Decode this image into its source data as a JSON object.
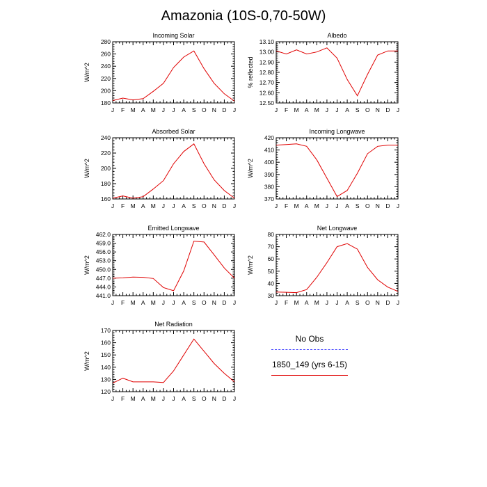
{
  "title": "Amazonia (10S-0,70-50W)",
  "legend": {
    "obs_label": "No Obs",
    "model_label": "1850_149 (yrs 6-15)",
    "obs_color": "#4444ff",
    "model_color": "#e00000"
  },
  "months": [
    "J",
    "F",
    "M",
    "A",
    "M",
    "J",
    "J",
    "A",
    "S",
    "O",
    "N",
    "D",
    "J"
  ],
  "chart_data": [
    {
      "type": "line",
      "title": "Incoming Solar",
      "ylabel": "W/m^2",
      "ylim": [
        180,
        280
      ],
      "yticks": [
        "180",
        "200",
        "220",
        "240",
        "260",
        "280"
      ],
      "values": [
        184,
        188,
        185,
        187,
        199,
        212,
        238,
        255,
        265,
        236,
        212,
        195,
        183
      ]
    },
    {
      "type": "line",
      "title": "Albedo",
      "ylabel": "% reflected",
      "ylim": [
        12.5,
        13.1
      ],
      "yticks": [
        "12.50",
        "12.60",
        "12.70",
        "12.80",
        "12.90",
        "13.00",
        "13.10"
      ],
      "values": [
        13.01,
        12.98,
        13.02,
        12.98,
        13.0,
        13.04,
        12.94,
        12.73,
        12.57,
        12.78,
        12.97,
        13.01,
        13.01
      ]
    },
    {
      "type": "line",
      "title": "Absorbed Solar",
      "ylabel": "W/m^2",
      "ylim": [
        160,
        240
      ],
      "yticks": [
        "160",
        "180",
        "200",
        "220",
        "240"
      ],
      "values": [
        161,
        164,
        161,
        163,
        173,
        184,
        206,
        222,
        232,
        206,
        185,
        171,
        161
      ]
    },
    {
      "type": "line",
      "title": "Incoming Longwave",
      "ylabel": "W/m^2",
      "ylim": [
        370,
        420
      ],
      "yticks": [
        "370",
        "380",
        "390",
        "400",
        "410",
        "420"
      ],
      "values": [
        414,
        414.5,
        415,
        413,
        402,
        387,
        372,
        377,
        391,
        407,
        413,
        414,
        414
      ]
    },
    {
      "type": "line",
      "title": "Emitted Longwave",
      "ylabel": "W/m^2",
      "ylim": [
        441,
        462
      ],
      "yticks": [
        "441.0",
        "444.0",
        "447.0",
        "450.0",
        "453.0",
        "456.0",
        "459.0",
        "462.0"
      ],
      "values": [
        447,
        447.1,
        447.4,
        447.3,
        446.9,
        443.8,
        442.7,
        449.5,
        459.7,
        459.4,
        455,
        450.5,
        447
      ]
    },
    {
      "type": "line",
      "title": "Net Longwave",
      "ylabel": "W/m^2",
      "ylim": [
        30,
        80
      ],
      "yticks": [
        "30",
        "40",
        "50",
        "60",
        "70",
        "80"
      ],
      "values": [
        33,
        32.8,
        32.5,
        35,
        45,
        57,
        70,
        72.5,
        68,
        53,
        43,
        37,
        33.5
      ]
    },
    {
      "type": "line",
      "title": "Net Radiation",
      "ylabel": "W/m^2",
      "ylim": [
        120,
        170
      ],
      "yticks": [
        "120",
        "130",
        "140",
        "150",
        "160",
        "170"
      ],
      "values": [
        127,
        131,
        128,
        128,
        128,
        127.5,
        137,
        150,
        163,
        153,
        143,
        135,
        128
      ]
    }
  ]
}
